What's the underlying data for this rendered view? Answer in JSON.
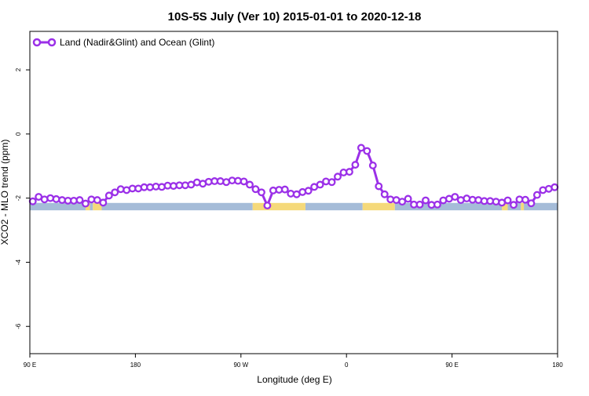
{
  "chart_data": {
    "type": "line",
    "title": "10S-5S July (Ver 10)   2015-01-01 to 2020-12-18",
    "xlabel": "Longitude (deg E)",
    "ylabel": "XCO2 - MLO trend (ppm)",
    "xlim": [
      90,
      450
    ],
    "ylim": [
      -6.85,
      3.2
    ],
    "x_ticks": [
      {
        "value": 90,
        "label": "90 E"
      },
      {
        "value": 162,
        "label": "180"
      },
      {
        "value": 234,
        "label": "90 W"
      },
      {
        "value": 306,
        "label": "0"
      },
      {
        "value": 378,
        "label": "90 E"
      },
      {
        "value": 450,
        "label": "180"
      }
    ],
    "y_ticks": [
      {
        "value": 2,
        "label": "2"
      },
      {
        "value": 0,
        "label": "0"
      },
      {
        "value": -2,
        "label": "-2"
      },
      {
        "value": -4,
        "label": "-4"
      },
      {
        "value": -6,
        "label": "-6"
      }
    ],
    "legend": {
      "position": "top-left",
      "entries": [
        "Land (Nadir&Glint) and Ocean (Glint)"
      ]
    },
    "colors": {
      "series": "#9b30e8",
      "ocean": "#a5bcd8",
      "land": "#f5d97a"
    },
    "series": [
      {
        "name": "Land (Nadir&Glint) and Ocean (Glint)",
        "x": [
          92,
          96,
          100,
          104,
          108,
          112,
          116,
          120,
          124,
          128,
          132,
          136,
          140,
          144,
          148,
          152,
          156,
          160,
          164,
          168,
          172,
          176,
          180,
          184,
          188,
          192,
          196,
          200,
          204,
          208,
          212,
          216,
          220,
          224,
          228,
          232,
          236,
          240,
          244,
          248,
          252,
          256,
          260,
          264,
          268,
          272,
          276,
          280,
          284,
          288,
          292,
          296,
          300,
          304,
          308,
          312,
          316,
          320,
          324,
          328,
          332,
          336,
          340,
          344,
          348,
          352,
          356,
          360,
          364,
          368,
          372,
          376,
          380,
          384,
          388,
          392,
          396,
          400,
          404,
          408,
          412,
          416,
          420,
          424,
          428,
          432,
          436,
          440,
          444,
          448
        ],
        "y": [
          -2.1,
          -1.96,
          -2.04,
          -2.0,
          -2.03,
          -2.06,
          -2.08,
          -2.08,
          -2.06,
          -2.17,
          -2.04,
          -2.06,
          -2.14,
          -1.92,
          -1.82,
          -1.72,
          -1.75,
          -1.7,
          -1.7,
          -1.66,
          -1.66,
          -1.64,
          -1.65,
          -1.61,
          -1.62,
          -1.6,
          -1.6,
          -1.58,
          -1.51,
          -1.55,
          -1.49,
          -1.47,
          -1.47,
          -1.5,
          -1.45,
          -1.46,
          -1.48,
          -1.58,
          -1.72,
          -1.82,
          -2.23,
          -1.76,
          -1.74,
          -1.73,
          -1.86,
          -1.88,
          -1.81,
          -1.77,
          -1.65,
          -1.58,
          -1.48,
          -1.5,
          -1.33,
          -1.2,
          -1.18,
          -0.96,
          -0.43,
          -0.53,
          -0.98,
          -1.63,
          -1.88,
          -2.04,
          -2.06,
          -2.11,
          -2.02,
          -2.2,
          -2.2,
          -2.07,
          -2.21,
          -2.2,
          -2.07,
          -2.02,
          -1.96,
          -2.06,
          -2.01,
          -2.05,
          -2.06,
          -2.09,
          -2.09,
          -2.11,
          -2.14,
          -2.07,
          -2.21,
          -2.04,
          -2.05,
          -2.16,
          -1.9,
          -1.75,
          -1.71,
          -1.66
        ]
      }
    ]
  },
  "surface_band": {
    "y_top": -2.15,
    "y_bottom": -2.38,
    "segments": [
      {
        "type": "ocean",
        "from": 90,
        "to": 128
      },
      {
        "type": "land",
        "from": 128,
        "to": 131
      },
      {
        "type": "ocean",
        "from": 131,
        "to": 133
      },
      {
        "type": "land",
        "from": 133,
        "to": 139
      },
      {
        "type": "ocean",
        "from": 139,
        "to": 242
      },
      {
        "type": "land",
        "from": 242,
        "to": 278
      },
      {
        "type": "ocean",
        "from": 278,
        "to": 317
      },
      {
        "type": "land",
        "from": 317,
        "to": 339
      },
      {
        "type": "ocean",
        "from": 339,
        "to": 412
      },
      {
        "type": "land",
        "from": 412,
        "to": 416
      },
      {
        "type": "ocean",
        "from": 416,
        "to": 425
      },
      {
        "type": "land",
        "from": 425,
        "to": 427
      },
      {
        "type": "ocean",
        "from": 427,
        "to": 450
      }
    ]
  }
}
